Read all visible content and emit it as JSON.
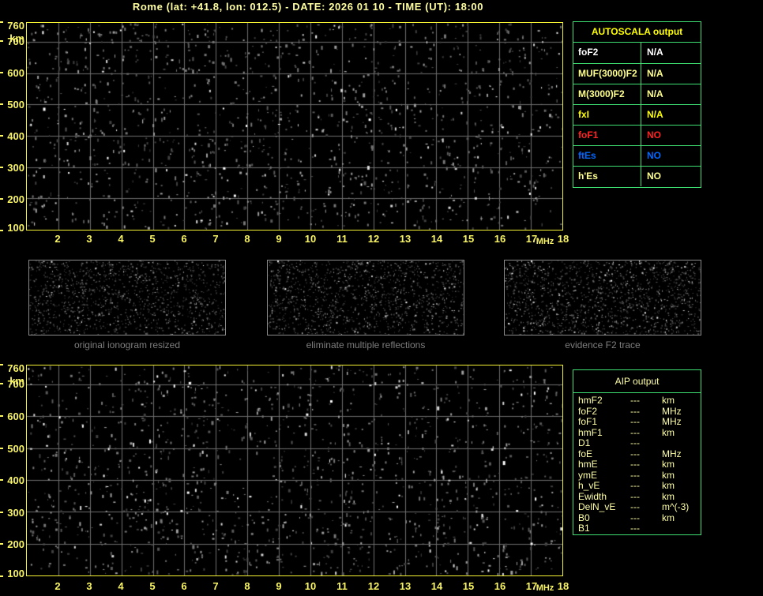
{
  "header": {
    "title": "Rome (lat: +41.8, lon: 012.5) - DATE: 2026 01 10 - TIME (UT): 18:00"
  },
  "colors": {
    "title_yellow": "#ffffa0",
    "axis_yellow": "#f8f464",
    "frame_yellow": "#f5f232",
    "grid_gray": "#6e6e6e",
    "table_green": "#3fe072",
    "bright_yellow": "#ffff00",
    "pale_yellow": "#ffff8e",
    "white": "#ffffff",
    "red": "#ff2222",
    "blue": "#0068ff",
    "caption_gray": "#7e7e7e",
    "thumb_border": "#8a8a8a",
    "aip_text": "#ffffa6"
  },
  "ionogram": {
    "x_unit": "MHz",
    "y_unit": "km",
    "x_range": [
      1,
      18
    ],
    "y_range": [
      100,
      760
    ],
    "x_ticks": [
      2,
      3,
      4,
      5,
      6,
      7,
      8,
      9,
      10,
      11,
      12,
      13,
      14,
      15,
      16,
      17,
      18
    ],
    "y_ticks": [
      760,
      700,
      600,
      500,
      400,
      300,
      200,
      100
    ],
    "grid_x_lines": [
      2,
      3,
      4,
      5,
      6,
      7,
      8,
      9,
      10,
      11,
      12,
      13,
      14,
      15,
      16,
      17
    ],
    "grid_y_lines": [
      700,
      600,
      500,
      400,
      300,
      200
    ],
    "description": "background noise speckle only, no echo traces detected"
  },
  "plots": {
    "top": {
      "name": "recorded ionogram",
      "noise": {
        "seed": 20260110,
        "count": 1450
      }
    },
    "bottom": {
      "name": "processed ionogram",
      "noise": {
        "seed": 18001800,
        "count": 1500
      }
    }
  },
  "thumbnails": [
    {
      "caption": "original ionogram resized",
      "noise": {
        "seed": 101,
        "count": 1250,
        "white": 0.035
      }
    },
    {
      "caption": "eliminate multiple reflections",
      "noise": {
        "seed": 202,
        "count": 1250,
        "white": 0.04
      }
    },
    {
      "caption": "evidence F2 trace",
      "noise": {
        "seed": 303,
        "count": 1400,
        "white": 0.075
      }
    }
  ],
  "autoscala_table": {
    "title": "AUTOSCALA output",
    "rows": [
      {
        "param": "foF2",
        "value": "N/A",
        "color": "#ffffff"
      },
      {
        "param": "MUF(3000)F2",
        "value": "N/A",
        "color": "#ffff8e"
      },
      {
        "param": "M(3000)F2",
        "value": "N/A",
        "color": "#ffff8e"
      },
      {
        "param": "fxI",
        "value": "N/A",
        "color": "#ffff00"
      },
      {
        "param": "foF1",
        "value": "NO",
        "color": "#ff2222"
      },
      {
        "param": "ftEs",
        "value": "NO",
        "color": "#0068ff"
      },
      {
        "param": "h'Es",
        "value": "NO",
        "color": "#ffff8e"
      }
    ]
  },
  "aip_table": {
    "title": "AIP output",
    "rows": [
      {
        "param": "hmF2",
        "value": "---",
        "unit": "km"
      },
      {
        "param": "foF2",
        "value": "---",
        "unit": "MHz"
      },
      {
        "param": "foF1",
        "value": "---",
        "unit": "MHz"
      },
      {
        "param": "hmF1",
        "value": "---",
        "unit": "km"
      },
      {
        "param": "D1",
        "value": "---",
        "unit": ""
      },
      {
        "param": "foE",
        "value": "---",
        "unit": "MHz"
      },
      {
        "param": "hmE",
        "value": "---",
        "unit": "km"
      },
      {
        "param": "ymE",
        "value": "---",
        "unit": "km"
      },
      {
        "param": "h_vE",
        "value": "---",
        "unit": "km"
      },
      {
        "param": "Ewidth",
        "value": "---",
        "unit": "km"
      },
      {
        "param": "DelN_vE",
        "value": "---",
        "unit": "m^(-3)"
      },
      {
        "param": "B0",
        "value": "---",
        "unit": "km"
      },
      {
        "param": "B1",
        "value": "---",
        "unit": ""
      }
    ]
  }
}
